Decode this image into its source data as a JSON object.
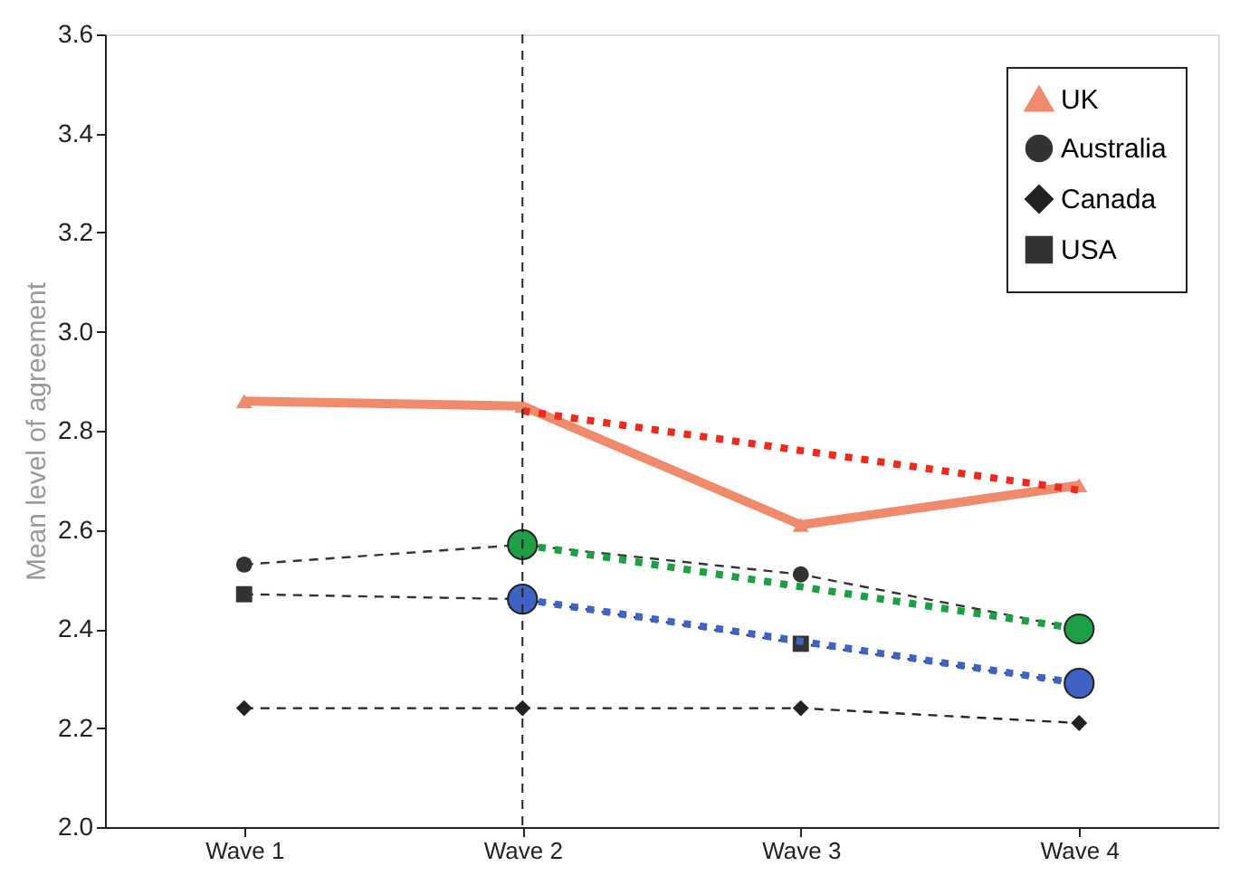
{
  "chart_data": {
    "type": "line",
    "ylabel": "Mean level of agreement",
    "categories": [
      "Wave 1",
      "Wave 2",
      "Wave 3",
      "Wave 4"
    ],
    "series": [
      {
        "name": "UK",
        "color": "#f08a6c",
        "marker": "triangle",
        "line_style": "solid",
        "values": [
          2.86,
          2.85,
          2.61,
          2.69
        ]
      },
      {
        "name": "Australia",
        "color": "#333333",
        "marker": "circle",
        "line_style": "dashed",
        "values": [
          2.53,
          2.57,
          2.51,
          2.4
        ]
      },
      {
        "name": "Canada",
        "color": "#222222",
        "marker": "diamond",
        "line_style": "dashed",
        "values": [
          2.24,
          2.24,
          2.24,
          2.21
        ]
      },
      {
        "name": "USA",
        "color": "#333333",
        "marker": "square",
        "line_style": "dashed",
        "values": [
          2.47,
          2.46,
          2.37,
          2.29
        ]
      },
      {
        "color": "#ee2a1e",
        "marker": "none",
        "line_style": "dotted",
        "values": [
          null,
          2.84,
          null,
          2.68
        ]
      },
      {
        "color": "#1e9e45",
        "marker": "circle",
        "line_style": "dotted",
        "values": [
          null,
          2.57,
          null,
          2.4
        ]
      },
      {
        "color": "#3f62c4",
        "marker": "circle",
        "line_style": "dotted",
        "values": [
          null,
          2.46,
          null,
          2.29
        ]
      }
    ],
    "ylim": [
      2.0,
      3.6
    ],
    "yticks": [
      {
        "value": 2.0,
        "label": "2.0"
      },
      2.2,
      2.4,
      2.6,
      2.8,
      {
        "value": 3.0,
        "label": "3.0"
      },
      3.2,
      3.4,
      3.6
    ],
    "ref_lines": [
      {
        "axis": "x",
        "value": "Wave 2",
        "line_style": "dashed",
        "color": "#222222"
      }
    ],
    "grid": false,
    "legend": "top right"
  }
}
